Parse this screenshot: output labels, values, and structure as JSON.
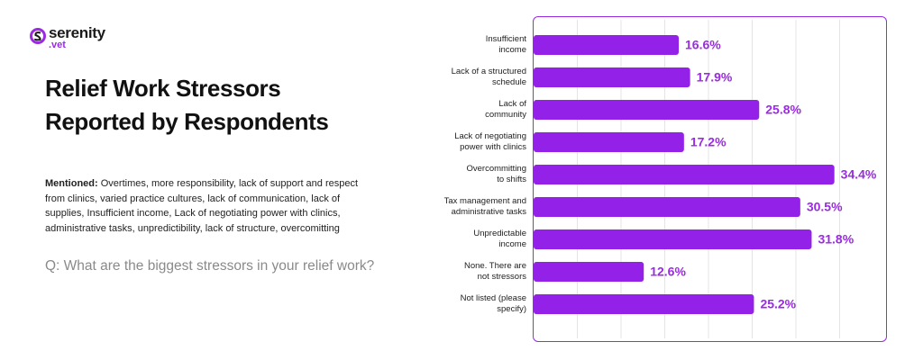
{
  "logo": {
    "name": "serenity",
    "suffix": ".vet"
  },
  "title": "Relief Work Stressors Reported by Respondents",
  "mentioned": {
    "label": "Mentioned:",
    "text": "Overtimes, more responsibility, lack of support and respect from clinics, varied practice cultures, lack of communication, lack of supplies, Insufficient income, Lack of negotiating power with clinics, administrative tasks, unpredictibility, lack of structure, overcomitting"
  },
  "question": "Q: What are the biggest stressors in your relief work?",
  "chart_data": {
    "type": "bar",
    "orientation": "horizontal",
    "categories": [
      "Insufficient\nincome",
      "Lack of a structured\nschedule",
      "Lack of\ncommunity",
      "Lack of negotiating\npower with clinics",
      "Overcommitting\nto shifts",
      "Tax management and\nadministrative tasks",
      "Unpredictable\nincome",
      "None. There are\nnot stressors",
      "Not listed (please\nspecify)"
    ],
    "values": [
      16.6,
      17.9,
      25.8,
      17.2,
      34.4,
      30.5,
      31.8,
      12.6,
      25.2
    ],
    "value_labels": [
      "16.6%",
      "17.9%",
      "25.8%",
      "17.2%",
      "34.4%",
      "30.5%",
      "31.8%",
      "12.6%",
      "25.2%"
    ],
    "color": "#9421e8",
    "label_color": "#9a2be0",
    "xlim": [
      0,
      40
    ],
    "xticks": [
      0,
      5,
      10,
      15,
      20,
      25,
      30,
      35,
      40
    ],
    "grid": true
  }
}
